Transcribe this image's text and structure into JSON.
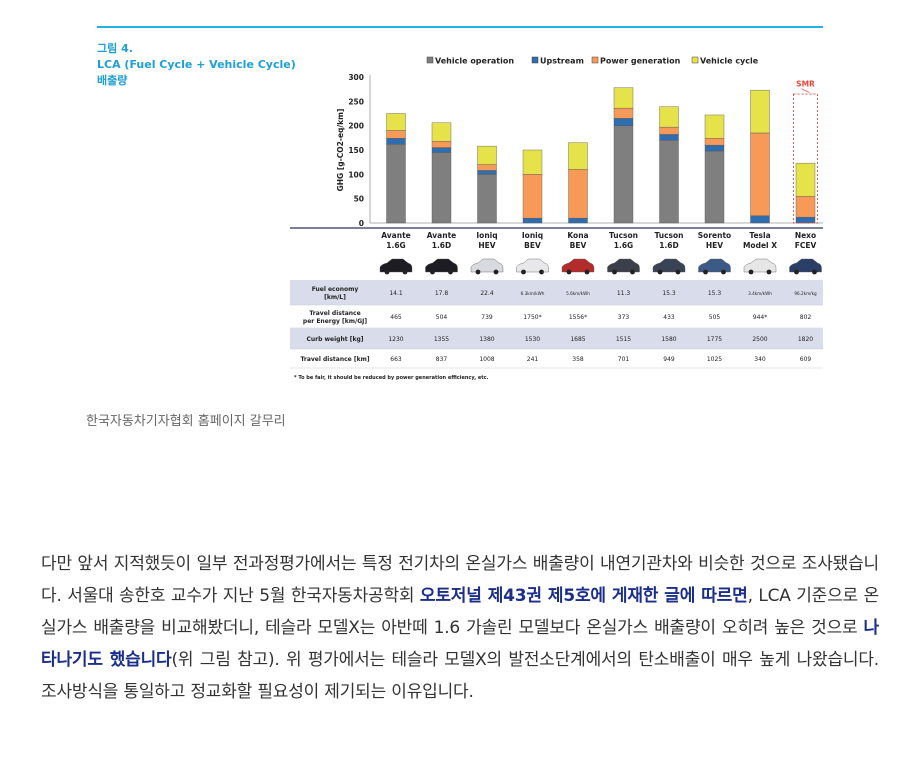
{
  "figure": {
    "label": "그림 4.",
    "title_lines": [
      "LCA (Fuel Cycle + Vehicle Cycle)",
      "배출량"
    ],
    "caption": "한국자동차기자협회 홈페이지 갈무리"
  },
  "chart_data": {
    "type": "bar",
    "stacked": true,
    "ylabel": "GHG [g-CO2-eq/km]",
    "ylim": [
      0,
      300
    ],
    "yticks": [
      0,
      50,
      100,
      150,
      200,
      250,
      300
    ],
    "grid": false,
    "legend_position": "top",
    "categories": [
      [
        "Avante",
        "1.6G"
      ],
      [
        "Avante",
        "1.6D"
      ],
      [
        "Ioniq",
        "HEV"
      ],
      [
        "Ioniq",
        "BEV"
      ],
      [
        "Kona",
        "BEV"
      ],
      [
        "Tucson",
        "1.6G"
      ],
      [
        "Tucson",
        "1.6D"
      ],
      [
        "Sorento",
        "HEV"
      ],
      [
        "Tesla",
        "Model X"
      ],
      [
        "Nexo",
        "FCEV"
      ]
    ],
    "series": [
      {
        "name": "Vehicle operation",
        "color": "#7f7f7f",
        "values": [
          162,
          145,
          100,
          0,
          0,
          200,
          170,
          148,
          0,
          0
        ]
      },
      {
        "name": "Upstream",
        "color": "#2e6db0",
        "values": [
          12,
          10,
          8,
          10,
          10,
          15,
          12,
          12,
          15,
          12
        ]
      },
      {
        "name": "Power generation",
        "color": "#f79a58",
        "values": [
          16,
          13,
          12,
          90,
          100,
          21,
          15,
          14,
          170,
          43
        ]
      },
      {
        "name": "Vehicle cycle",
        "color": "#e6e24a",
        "values": [
          35,
          38,
          38,
          50,
          55,
          42,
          42,
          48,
          88,
          68
        ]
      }
    ],
    "annotation": "SMR",
    "table": {
      "rows": [
        {
          "label": [
            "Fuel economy",
            "[km/L]"
          ],
          "values": [
            "14.1",
            "17.8",
            "22.4",
            "6.3km/kWh",
            "5.6km/kWh",
            "11.3",
            "15.3",
            "15.3",
            "3.4km/kWh",
            "96.2km/kg"
          ]
        },
        {
          "label": [
            "Travel distance",
            "per Energy [km/GJ]"
          ],
          "values": [
            "465",
            "504",
            "739",
            "1750*",
            "1556*",
            "373",
            "433",
            "505",
            "944*",
            "802"
          ]
        },
        {
          "label": [
            "Curb weight [kg]"
          ],
          "values": [
            "1230",
            "1355",
            "1380",
            "1530",
            "1685",
            "1515",
            "1580",
            "1775",
            "2500",
            "1820"
          ]
        },
        {
          "label": [
            "Travel distance [km]"
          ],
          "values": [
            "663",
            "837",
            "1008",
            "241",
            "358",
            "701",
            "949",
            "1025",
            "340",
            "609"
          ]
        }
      ],
      "footnote": "* To be fair, it should be reduced by power generation efficiency, etc."
    }
  },
  "article": {
    "seg1": "다만 앞서 지적했듯이  일부 전과정평가에서는 특정 전기차의 온실가스 배출량이 내연기관차와 비슷한 것으로 조사됐습니다. 서울대 송한호 교수가 지난 5월 한국자동차공학회 ",
    "link1": "오토저널 제43권 제5호에 게재한 글에 따르면",
    "seg2": ", LCA 기준으로 온실가스 배출량을 비교해봤더니, 테슬라 모델X는 아반떼 1.6 가솔린 모델보다 온실가스 배출량이 오히려 높은 것으로 ",
    "link2": "나타나기도 했습니다",
    "seg3": "(위 그림 참고). 위 평가에서는 테슬라 모델X의 발전소단계에서의 탄소배출이 매우 높게 나왔습니다. 조사방식을 통일하고 정교화할 필요성이 제기되는 이유입니다."
  }
}
